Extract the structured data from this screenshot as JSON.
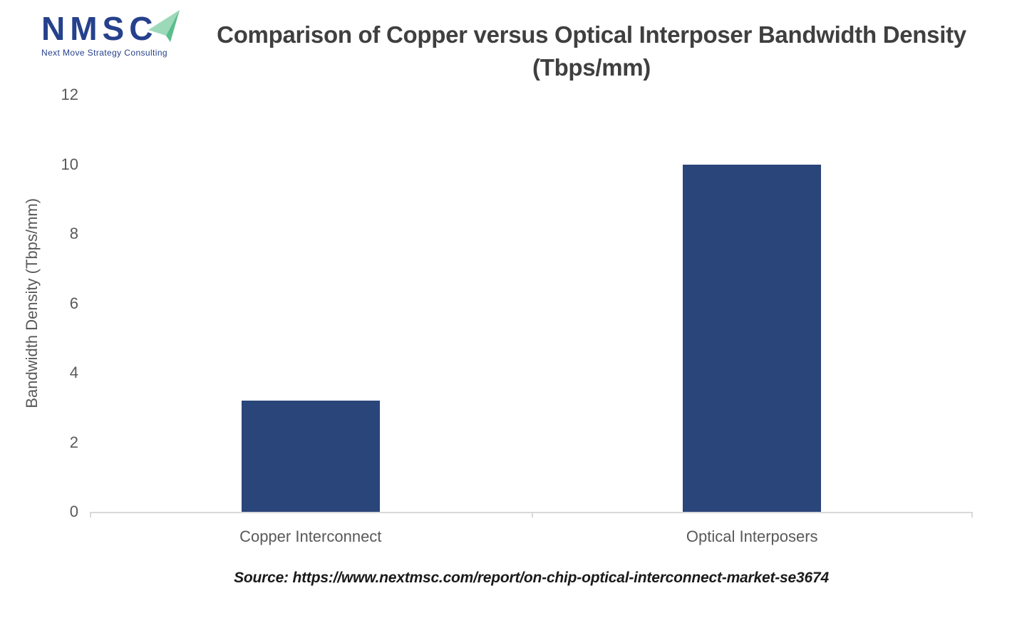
{
  "logo": {
    "acronym": "NMSC",
    "tagline": "Next Move Strategy Consulting",
    "navy": "#26418C",
    "arrow_green_light": "#9CD9B9",
    "arrow_green_dark": "#5BBD8E"
  },
  "title": {
    "line1": "Comparison of Copper versus Optical Interposer Bandwidth Density",
    "line2": "(Tbps/mm)"
  },
  "source": "Source: https://www.nextmsc.com/report/on-chip-optical-interconnect-market-se3674",
  "chart_data": {
    "type": "bar",
    "categories": [
      "Copper Interconnect",
      "Optical Interposers"
    ],
    "values": [
      3.2,
      10
    ],
    "title": "Comparison of Copper versus Optical Interposer Bandwidth Density (Tbps/mm)",
    "xlabel": "",
    "ylabel": "Bandwidth Density (Tbps/mm)",
    "ylim": [
      0,
      12
    ],
    "yticks": [
      0,
      2,
      4,
      6,
      8,
      10,
      12
    ],
    "grid": false,
    "legend": "none",
    "bar_color": "#2A4579",
    "axis_color": "#D9D9D9",
    "label_color": "#595959",
    "title_color": "#3F3F3F",
    "source_color": "#1A1A1A"
  }
}
